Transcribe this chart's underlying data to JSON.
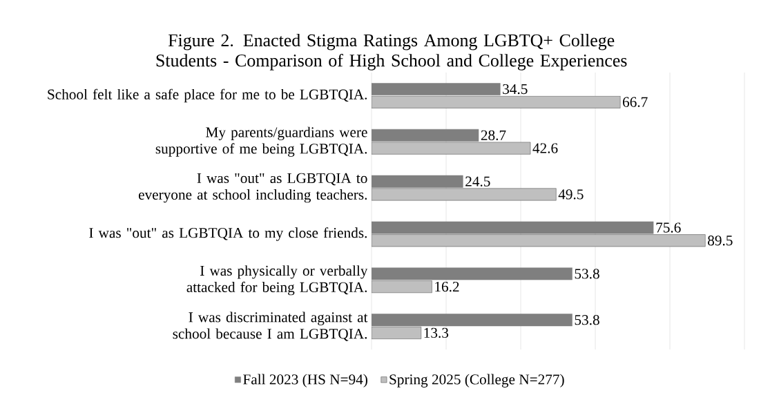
{
  "chart_data": {
    "type": "bar",
    "orientation": "horizontal",
    "title": "Figure 2. Enacted Stigma Ratings Among LGBTQ+ College Students - Comparison of High School and College Experiences",
    "categories": [
      "School felt like a safe place for me to be LGBTQIA.",
      "My parents/guardians were supportive of me being LGBTQIA.",
      "I was \"out\" as LGBTQIA to everyone at school including teachers.",
      "I was \"out\" as LGBTQIA to my close friends.",
      "I was physically or verbally attacked for being LGBTQIA.",
      "I was discriminated against at school because I am LGBTQIA."
    ],
    "series": [
      {
        "name": "Fall 2023 (HS N=94)",
        "color": "#7f7f7f",
        "values": [
          34.5,
          28.7,
          24.5,
          75.6,
          53.8,
          53.8
        ]
      },
      {
        "name": "Spring 2025 (College N=277)",
        "color": "#bfbfbf",
        "values": [
          66.7,
          42.6,
          49.5,
          89.5,
          16.2,
          13.3
        ]
      }
    ],
    "xlim": [
      0,
      100
    ],
    "xticks": [
      {
        "value": 0,
        "label": null
      },
      {
        "value": 20,
        "label": null
      },
      {
        "value": 40,
        "label": null
      },
      {
        "value": 60,
        "label": null
      },
      {
        "value": 80,
        "label": null
      },
      {
        "value": 100,
        "label": null
      }
    ],
    "tick_labels": "y",
    "grid": "x",
    "legend": "bottom",
    "data_labels": true
  }
}
